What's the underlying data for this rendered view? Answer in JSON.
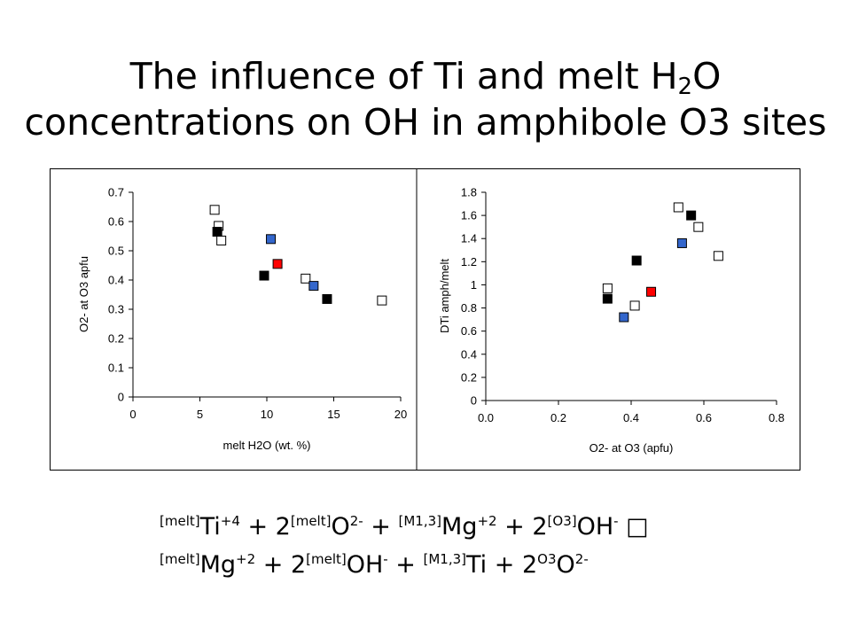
{
  "title": {
    "line1_pre": "The influence of Ti and melt H",
    "line1_sub": "2",
    "line1_post": "O",
    "line2": "concentrations on OH in amphibole O3 sites"
  },
  "colors": {
    "black": "#000000",
    "white": "#ffffff",
    "blue": "#3366cc",
    "red": "#ff0000"
  },
  "chart_data": [
    {
      "type": "scatter",
      "xlabel": "melt H2O (wt. %)",
      "ylabel": "O2- at O3 apfu",
      "xlim": [
        0,
        20
      ],
      "ylim": [
        0,
        0.7
      ],
      "xticks": [
        0,
        5,
        10,
        15,
        20
      ],
      "yticks": [
        0,
        0.1,
        0.2,
        0.3,
        0.4,
        0.5,
        0.6,
        0.7
      ],
      "grid": false,
      "series": [
        {
          "marker": "open-square",
          "points": [
            [
              6.1,
              0.64
            ],
            [
              6.4,
              0.585
            ],
            [
              6.6,
              0.535
            ],
            [
              12.9,
              0.405
            ],
            [
              18.6,
              0.33
            ]
          ]
        },
        {
          "marker": "black-square",
          "points": [
            [
              6.3,
              0.565
            ],
            [
              9.8,
              0.415
            ],
            [
              14.5,
              0.335
            ]
          ]
        },
        {
          "marker": "blue-square",
          "points": [
            [
              10.3,
              0.54
            ],
            [
              13.5,
              0.38
            ]
          ]
        },
        {
          "marker": "red-square",
          "points": [
            [
              10.8,
              0.455
            ]
          ]
        }
      ]
    },
    {
      "type": "scatter",
      "xlabel": "O2- at O3 (apfu)",
      "ylabel": "DTi amph/melt",
      "xlim": [
        0,
        0.8
      ],
      "ylim": [
        0,
        1.8
      ],
      "xticks": [
        "0.0",
        "0.2",
        "0.4",
        "0.6",
        "0.8"
      ],
      "yticks": [
        "0",
        "0.2",
        "0.4",
        "0.6",
        "0.8",
        "1",
        "1.2",
        "1.4",
        "1.6",
        "1.8"
      ],
      "grid": false,
      "series": [
        {
          "marker": "open-square",
          "points": [
            [
              0.335,
              0.97
            ],
            [
              0.41,
              0.82
            ],
            [
              0.53,
              1.67
            ],
            [
              0.585,
              1.5
            ],
            [
              0.64,
              1.25
            ]
          ]
        },
        {
          "marker": "black-square",
          "points": [
            [
              0.335,
              0.88
            ],
            [
              0.415,
              1.21
            ],
            [
              0.565,
              1.6
            ]
          ]
        },
        {
          "marker": "blue-square",
          "points": [
            [
              0.38,
              0.72
            ],
            [
              0.54,
              1.36
            ]
          ]
        },
        {
          "marker": "red-square",
          "points": [
            [
              0.455,
              0.94
            ]
          ]
        }
      ]
    }
  ],
  "equation": {
    "line1": [
      {
        "t": "sup",
        "v": "[melt]"
      },
      {
        "t": "n",
        "v": "Ti"
      },
      {
        "t": "sup",
        "v": "+4"
      },
      {
        "t": "n",
        "v": " + 2"
      },
      {
        "t": "sup",
        "v": "[melt]"
      },
      {
        "t": "n",
        "v": "O"
      },
      {
        "t": "sup",
        "v": "2-"
      },
      {
        "t": "n",
        "v": " + "
      },
      {
        "t": "sup",
        "v": "[M1,3]"
      },
      {
        "t": "n",
        "v": "Mg"
      },
      {
        "t": "sup",
        "v": "+2"
      },
      {
        "t": "n",
        "v": " + 2"
      },
      {
        "t": "sup",
        "v": "[O3]"
      },
      {
        "t": "n",
        "v": "OH"
      },
      {
        "t": "sup",
        "v": "-"
      },
      {
        "t": "n",
        "v": " □"
      }
    ],
    "line2": [
      {
        "t": "sup",
        "v": "[melt]"
      },
      {
        "t": "n",
        "v": "Mg"
      },
      {
        "t": "sup",
        "v": "+2"
      },
      {
        "t": "n",
        "v": " + 2"
      },
      {
        "t": "sup",
        "v": "[melt]"
      },
      {
        "t": "n",
        "v": "OH"
      },
      {
        "t": "sup",
        "v": "-"
      },
      {
        "t": "n",
        "v": " + "
      },
      {
        "t": "sup",
        "v": "[M1,3]"
      },
      {
        "t": "n",
        "v": "Ti"
      },
      {
        "t": "n",
        "v": " + 2"
      },
      {
        "t": "sup",
        "v": "O3"
      },
      {
        "t": "n",
        "v": "O"
      },
      {
        "t": "sup",
        "v": "2-"
      }
    ]
  }
}
